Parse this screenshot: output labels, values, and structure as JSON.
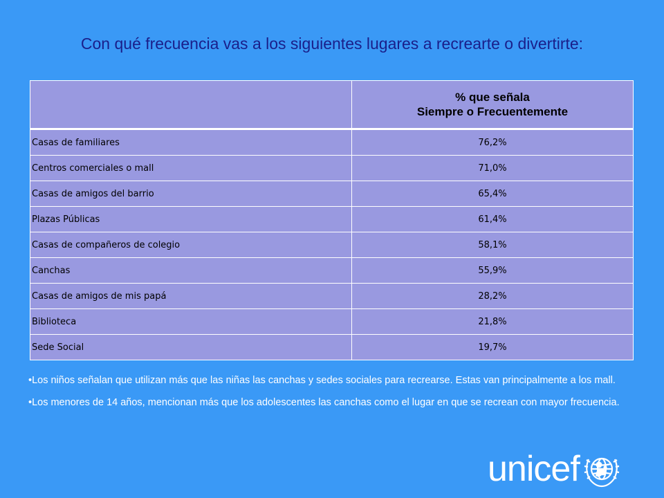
{
  "title": "Con qué frecuencia vas a los siguientes lugares a recrearte o divertirte:",
  "table": {
    "header_line1": "% que señala",
    "header_line2": "Siempre o Frecuentemente",
    "rows": [
      {
        "label": "Casas de familiares",
        "value": "76,2%"
      },
      {
        "label": "Centros comerciales o mall",
        "value": "71,0%"
      },
      {
        "label": "Casas de amigos del barrio",
        "value": "65,4%"
      },
      {
        "label": "Plazas Públicas",
        "value": "61,4%"
      },
      {
        "label": "Casas de compañeros de colegio",
        "value": "58,1%"
      },
      {
        "label": "Canchas",
        "value": "55,9%"
      },
      {
        "label": "Casas de amigos de mis papá",
        "value": "28,2%"
      },
      {
        "label": "Biblioteca",
        "value": "21,8%"
      },
      {
        "label": "Sede Social",
        "value": "19,7%"
      }
    ]
  },
  "bullets": [
    "•Los niños señalan que utilizan  más que las niñas las canchas y sedes sociales para recrearse. Estas van principalmente a los mall.",
    "•Los menores de 14 años, mencionan más que los adolescentes  las canchas como el lugar en que se recrean con mayor frecuencia."
  ],
  "logo": {
    "text": "unicef",
    "emblem_icon": "unicef-emblem-icon"
  },
  "colors": {
    "background": "#3a99f6",
    "title": "#1a1f8a",
    "table_fill": "#9999e0",
    "bullet_text": "#ffffff"
  }
}
